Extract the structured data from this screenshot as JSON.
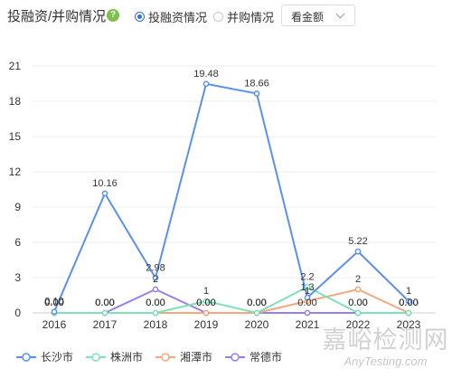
{
  "header": {
    "title": "投融资/并购情况",
    "help": "?",
    "radio_invest": "投融资情况",
    "radio_merger": "并购情况",
    "selected_radio": "invest",
    "select_value": "看金额"
  },
  "colors": {
    "长沙市": "#5b8ff0",
    "株洲市": "#7ee0b8",
    "湘潭市": "#f5a67c",
    "常德市": "#9a7cf0"
  },
  "chart_data": {
    "type": "line",
    "x": [
      "2016",
      "2017",
      "2018",
      "2019",
      "2020",
      "2021",
      "2022",
      "2023"
    ],
    "ylim": [
      0,
      21
    ],
    "yticks": [
      0,
      3,
      6,
      9,
      12,
      15,
      18,
      21
    ],
    "grid": true,
    "legend_position": "bottom-left",
    "series": [
      {
        "name": "长沙市",
        "values": [
          0.1,
          10.16,
          2.98,
          19.48,
          18.66,
          1.3,
          5.22,
          1
        ],
        "labels": [
          "0.10",
          "10.16",
          "2.98",
          "19.48",
          "18.66",
          "1.3",
          "5.22",
          "1"
        ]
      },
      {
        "name": "株洲市",
        "values": [
          0,
          0,
          0,
          1,
          0,
          2.2,
          0,
          0
        ],
        "labels": [
          "0.00",
          "0.00",
          "0.00",
          "1",
          "0.00",
          "2.2",
          "0.00",
          "0.00"
        ]
      },
      {
        "name": "湘潭市",
        "values": [
          0,
          0,
          0,
          0,
          0,
          1,
          2,
          0
        ],
        "labels": [
          "0.00",
          "0.00",
          "0.00",
          "0.00",
          "0.00",
          "1",
          "2",
          "0.00"
        ]
      },
      {
        "name": "常德市",
        "values": [
          0,
          0,
          2,
          0,
          0,
          0,
          0,
          0
        ],
        "labels": [
          "0.00",
          "0.00",
          "2",
          "0.00",
          "0.00",
          "0.00",
          "0.00",
          "0.00"
        ]
      }
    ]
  },
  "legend": [
    "长沙市",
    "株洲市",
    "湘潭市",
    "常德市"
  ],
  "watermark": {
    "line1": "嘉峪检测网",
    "line2": "AnyTesting.com"
  }
}
